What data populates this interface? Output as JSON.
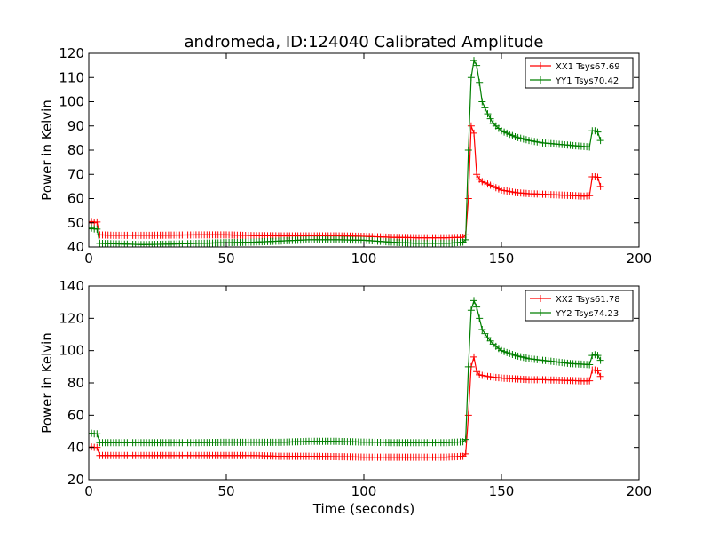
{
  "figure": {
    "title": "andromeda, ID:124040 Calibrated Amplitude",
    "xlabel": "Time (seconds)"
  },
  "chart_data": [
    {
      "type": "line",
      "ylabel": "Power in Kelvin",
      "xlim": [
        0,
        200
      ],
      "ylim": [
        40,
        120
      ],
      "xticks": [
        0,
        50,
        100,
        150,
        200
      ],
      "yticks": [
        40,
        50,
        60,
        70,
        80,
        90,
        100,
        110,
        120
      ],
      "legend_position": "top-right",
      "series": [
        {
          "name": "XX1 Tsys67.69",
          "color": "#ff0000",
          "points": [
            [
              0,
              50
            ],
            [
              1,
              50.5
            ],
            [
              2,
              50
            ],
            [
              3,
              50.3
            ],
            [
              4,
              45
            ],
            [
              10,
              44.8
            ],
            [
              20,
              44.8
            ],
            [
              30,
              44.9
            ],
            [
              40,
              45
            ],
            [
              50,
              45
            ],
            [
              60,
              44.7
            ],
            [
              70,
              44.6
            ],
            [
              80,
              44.6
            ],
            [
              90,
              44.6
            ],
            [
              100,
              44.4
            ],
            [
              110,
              44
            ],
            [
              120,
              43.8
            ],
            [
              130,
              43.8
            ],
            [
              136,
              44
            ],
            [
              137,
              45
            ],
            [
              138,
              60
            ],
            [
              139,
              90
            ],
            [
              140,
              87
            ],
            [
              141,
              70
            ],
            [
              142,
              68
            ],
            [
              143,
              67
            ],
            [
              145,
              66
            ],
            [
              147,
              65
            ],
            [
              150,
              63.5
            ],
            [
              155,
              62.5
            ],
            [
              160,
              62
            ],
            [
              165,
              61.8
            ],
            [
              170,
              61.5
            ],
            [
              175,
              61.3
            ],
            [
              180,
              61
            ],
            [
              182,
              61.2
            ],
            [
              183,
              69
            ],
            [
              184,
              69
            ],
            [
              185,
              68.8
            ],
            [
              186,
              65
            ]
          ]
        },
        {
          "name": "YY1 Tsys70.42",
          "color": "#007f00",
          "points": [
            [
              0,
              47.5
            ],
            [
              1,
              47.8
            ],
            [
              2,
              47.5
            ],
            [
              3,
              47.4
            ],
            [
              4,
              41.5
            ],
            [
              10,
              41.3
            ],
            [
              20,
              41
            ],
            [
              30,
              41.2
            ],
            [
              40,
              41.5
            ],
            [
              50,
              41.8
            ],
            [
              60,
              42
            ],
            [
              70,
              42.5
            ],
            [
              80,
              43
            ],
            [
              90,
              43
            ],
            [
              100,
              42.8
            ],
            [
              110,
              42
            ],
            [
              120,
              41.5
            ],
            [
              130,
              41.5
            ],
            [
              136,
              42
            ],
            [
              137,
              43
            ],
            [
              138,
              80
            ],
            [
              139,
              110
            ],
            [
              140,
              117
            ],
            [
              141,
              115
            ],
            [
              142,
              108
            ],
            [
              143,
              100
            ],
            [
              145,
              95
            ],
            [
              147,
              91
            ],
            [
              150,
              88
            ],
            [
              155,
              85.5
            ],
            [
              160,
              84
            ],
            [
              165,
              83
            ],
            [
              170,
              82.5
            ],
            [
              175,
              82
            ],
            [
              180,
              81.5
            ],
            [
              182,
              81.3
            ],
            [
              183,
              88
            ],
            [
              184,
              88
            ],
            [
              185,
              87.5
            ],
            [
              186,
              84
            ]
          ]
        }
      ]
    },
    {
      "type": "line",
      "ylabel": "Power in Kelvin",
      "xlim": [
        0,
        200
      ],
      "ylim": [
        20,
        140
      ],
      "xticks": [
        0,
        50,
        100,
        150,
        200
      ],
      "yticks": [
        20,
        40,
        60,
        80,
        100,
        120,
        140
      ],
      "legend_position": "top-right",
      "series": [
        {
          "name": "XX2 Tsys61.78",
          "color": "#ff0000",
          "points": [
            [
              0,
              40
            ],
            [
              1,
              40.3
            ],
            [
              2,
              40
            ],
            [
              3,
              40
            ],
            [
              4,
              35
            ],
            [
              10,
              35
            ],
            [
              20,
              35
            ],
            [
              30,
              35
            ],
            [
              40,
              35
            ],
            [
              50,
              35
            ],
            [
              60,
              35
            ],
            [
              70,
              34.5
            ],
            [
              80,
              34.5
            ],
            [
              90,
              34.3
            ],
            [
              100,
              34
            ],
            [
              110,
              34
            ],
            [
              120,
              34
            ],
            [
              130,
              34
            ],
            [
              136,
              34.5
            ],
            [
              137,
              36
            ],
            [
              138,
              60
            ],
            [
              139,
              90
            ],
            [
              140,
              96
            ],
            [
              141,
              87
            ],
            [
              142,
              85
            ],
            [
              145,
              84
            ],
            [
              150,
              83
            ],
            [
              155,
              82.5
            ],
            [
              160,
              82
            ],
            [
              165,
              82
            ],
            [
              170,
              81.7
            ],
            [
              175,
              81.5
            ],
            [
              180,
              81.2
            ],
            [
              182,
              81.3
            ],
            [
              183,
              88
            ],
            [
              184,
              88
            ],
            [
              185,
              87.5
            ],
            [
              186,
              84
            ]
          ]
        },
        {
          "name": "YY2 Tsys74.23",
          "color": "#007f00",
          "points": [
            [
              0,
              48.5
            ],
            [
              1,
              48.8
            ],
            [
              2,
              48.5
            ],
            [
              3,
              48.5
            ],
            [
              4,
              43
            ],
            [
              10,
              43
            ],
            [
              20,
              43
            ],
            [
              30,
              43
            ],
            [
              40,
              43
            ],
            [
              50,
              43.2
            ],
            [
              60,
              43.2
            ],
            [
              70,
              43.2
            ],
            [
              80,
              43.8
            ],
            [
              90,
              43.8
            ],
            [
              100,
              43.3
            ],
            [
              110,
              43
            ],
            [
              120,
              43
            ],
            [
              130,
              43
            ],
            [
              136,
              43.5
            ],
            [
              137,
              45
            ],
            [
              138,
              90
            ],
            [
              139,
              125
            ],
            [
              140,
              131
            ],
            [
              141,
              127
            ],
            [
              142,
              120
            ],
            [
              143,
              113
            ],
            [
              145,
              108
            ],
            [
              147,
              104
            ],
            [
              150,
              100
            ],
            [
              155,
              97
            ],
            [
              160,
              95
            ],
            [
              165,
              94
            ],
            [
              170,
              93
            ],
            [
              175,
              92
            ],
            [
              180,
              91.5
            ],
            [
              182,
              91.3
            ],
            [
              183,
              97
            ],
            [
              184,
              97.5
            ],
            [
              185,
              97
            ],
            [
              186,
              94
            ]
          ]
        }
      ]
    }
  ]
}
